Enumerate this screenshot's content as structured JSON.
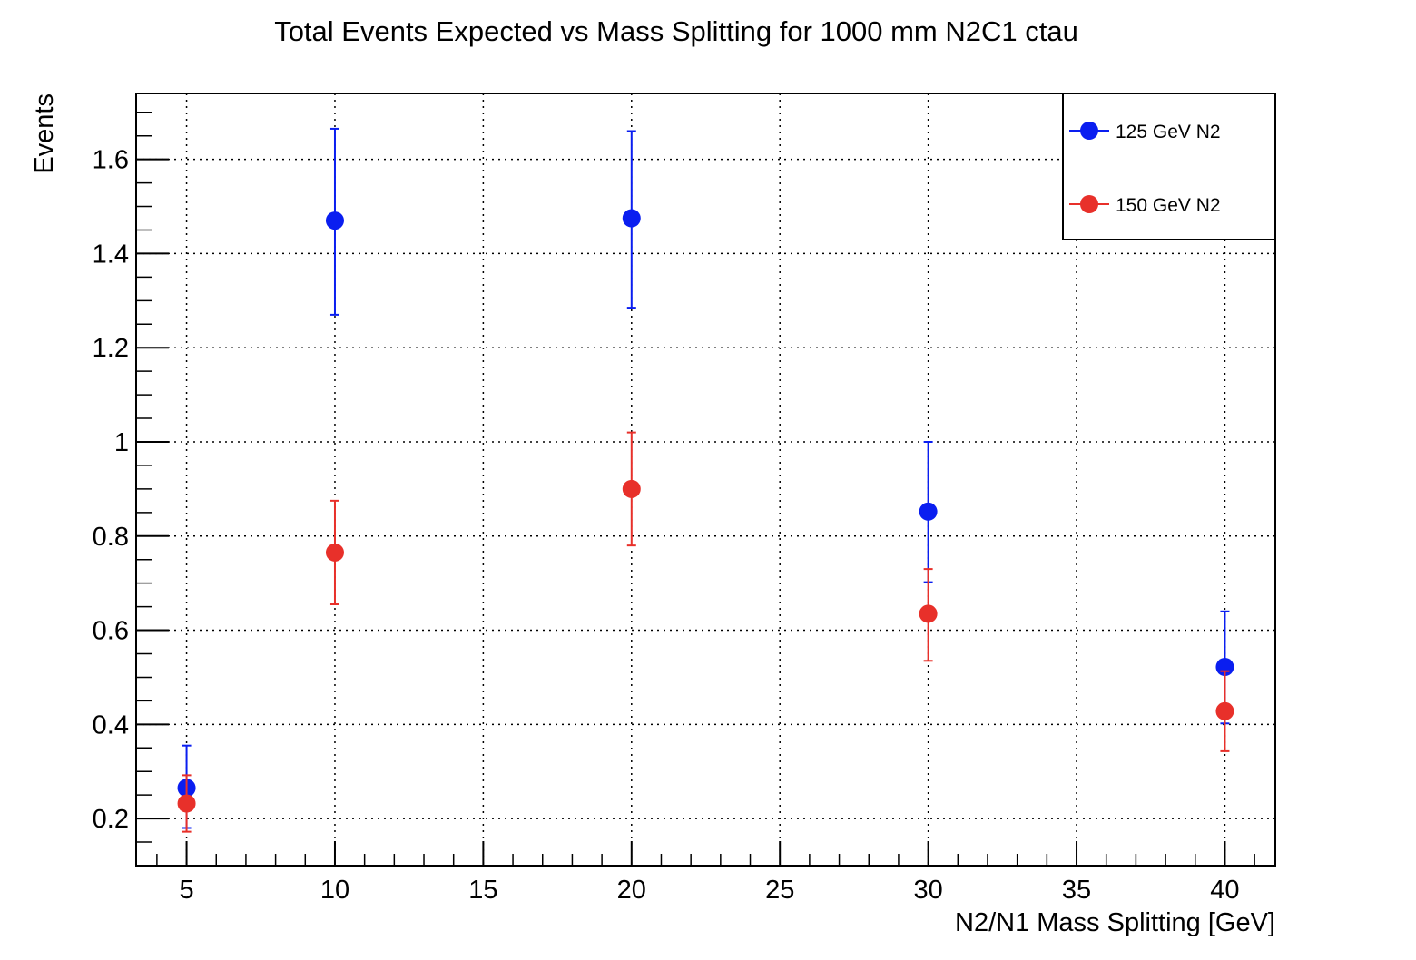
{
  "chart_data": {
    "type": "scatter",
    "title": "Total Events Expected vs Mass Splitting for 1000 mm N2C1 ctau",
    "xlabel": "N2/N1 Mass Splitting [GeV]",
    "ylabel": "Events",
    "xlim": [
      3.3,
      41.7
    ],
    "ylim": [
      0.1,
      1.74
    ],
    "xticks": [
      5,
      10,
      15,
      20,
      25,
      30,
      35,
      40
    ],
    "xtick_labels": [
      "5",
      "10",
      "15",
      "20",
      "25",
      "30",
      "35",
      "40"
    ],
    "yticks": [
      0.2,
      0.4,
      0.6,
      0.8,
      1.0,
      1.2,
      1.4,
      1.6
    ],
    "ytick_labels": [
      "0.2",
      "0.4",
      "0.6",
      "0.8",
      "1",
      "1.2",
      "1.4",
      "1.6"
    ],
    "grid": true,
    "grid_style": "dotted",
    "legend_position": "top-right",
    "series": [
      {
        "name": "125 GeV N2",
        "color": "#0a1ef0",
        "x": [
          5,
          10,
          20,
          30,
          40
        ],
        "y": [
          0.265,
          1.47,
          1.475,
          0.852,
          0.522
        ],
        "yerr_low": [
          0.085,
          0.2,
          0.19,
          0.15,
          0.12
        ],
        "yerr_high": [
          0.09,
          0.195,
          0.185,
          0.148,
          0.118
        ]
      },
      {
        "name": "150 GeV N2",
        "color": "#e8302a",
        "x": [
          5,
          10,
          20,
          30,
          40
        ],
        "y": [
          0.232,
          0.765,
          0.9,
          0.635,
          0.428
        ],
        "yerr_low": [
          0.06,
          0.11,
          0.12,
          0.1,
          0.085
        ],
        "yerr_high": [
          0.06,
          0.11,
          0.12,
          0.095,
          0.085
        ]
      }
    ]
  }
}
